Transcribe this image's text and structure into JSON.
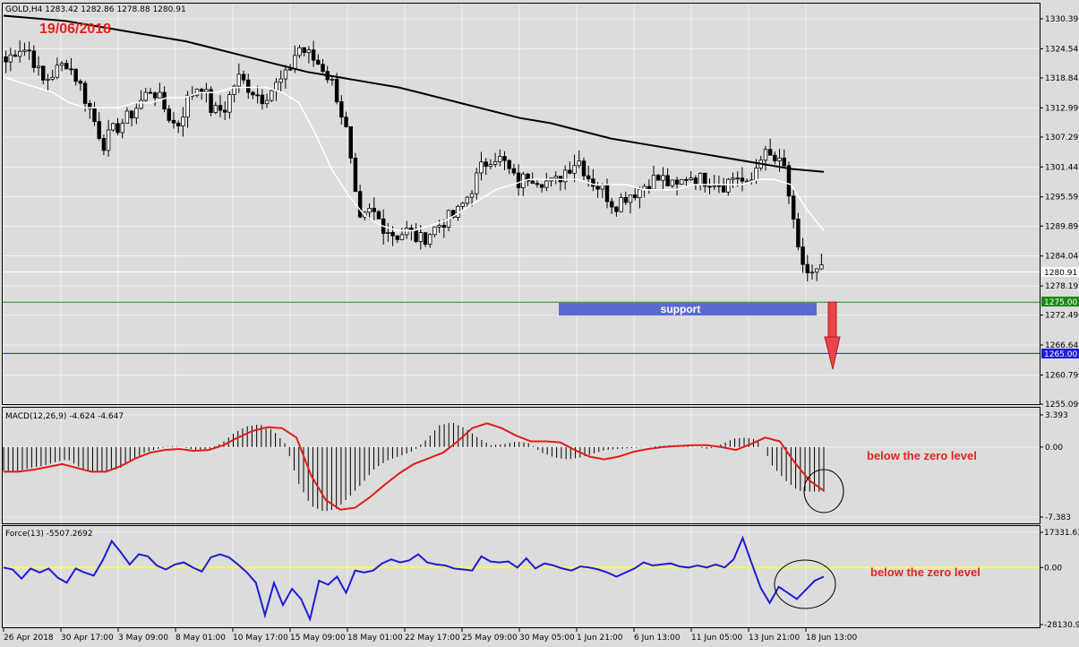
{
  "chart_data": [
    {
      "type": "candlestick",
      "symbol_header": "GOLD,H4  1283.42 1282.86 1278.88 1280.91",
      "annotation_date": "19/06/2018",
      "y_ticks": [
        "1330.39",
        "1324.54",
        "1318.84",
        "1312.99",
        "1307.29",
        "1301.44",
        "1295.59",
        "1289.89",
        "1284.04",
        "1278.19",
        "1272.49",
        "1266.64",
        "1260.79",
        "1255.09"
      ],
      "ylim": [
        1255.09,
        1330.39
      ],
      "current_price": 1280.91,
      "current_price_label": "1280.91",
      "level_support": 1275.0,
      "level_support_label": "1275.00",
      "level_target": 1265.0,
      "level_target_label": "1265.00",
      "support_label": "support",
      "close_path": [
        1322,
        1325,
        1324,
        1318,
        1320,
        1322,
        1318,
        1312,
        1306,
        1309,
        1311,
        1314,
        1317,
        1313,
        1309,
        1315,
        1318,
        1312,
        1313,
        1319,
        1317,
        1315,
        1317,
        1319,
        1325,
        1323,
        1321,
        1317,
        1308,
        1290,
        1293,
        1290,
        1288,
        1289,
        1287,
        1289,
        1291,
        1292,
        1296,
        1301,
        1304,
        1302,
        1298,
        1300,
        1299,
        1298,
        1301,
        1303,
        1299,
        1297,
        1294,
        1296,
        1297,
        1299,
        1299,
        1297,
        1300,
        1299,
        1299,
        1298,
        1300,
        1297,
        1304,
        1303,
        1301,
        1285,
        1280,
        1281
      ],
      "ma_fast": [
        1319,
        1318,
        1317,
        1316,
        1314,
        1313,
        1313,
        1313,
        1314,
        1314,
        1315,
        1315,
        1316,
        1316,
        1317,
        1317,
        1317,
        1316,
        1314,
        1308,
        1301,
        1296,
        1292,
        1290,
        1289,
        1289,
        1290,
        1291,
        1293,
        1295,
        1297,
        1298,
        1299,
        1299,
        1299,
        1299,
        1298,
        1298,
        1298,
        1297,
        1297,
        1297,
        1298,
        1298,
        1298,
        1298,
        1299,
        1299,
        1298,
        1293,
        1289
      ],
      "ma_slow": [
        1331,
        1330.5,
        1330,
        1329,
        1328,
        1327,
        1326,
        1324.5,
        1323,
        1321.5,
        1320,
        1319,
        1318,
        1317,
        1315.5,
        1314,
        1312.5,
        1311,
        1310,
        1308.5,
        1307,
        1306,
        1305,
        1304,
        1303,
        1302,
        1301,
        1300.5
      ]
    },
    {
      "type": "bar",
      "name": "MACD",
      "header": "MACD(12,26,9) -4.624 -4.647",
      "y_ticks": [
        "3.393",
        "0.00",
        "-7.383"
      ],
      "ylim": [
        -7.383,
        3.393
      ],
      "annotation": "below the zero level",
      "histogram": [
        -2.5,
        -2.6,
        -2.2,
        -2.0,
        -1.6,
        -1.3,
        -2.2,
        -2.6,
        -2.6,
        -2.3,
        -1.4,
        -0.6,
        -0.2,
        0.1,
        0.0,
        -0.3,
        -0.2,
        0.4,
        1.5,
        2.2,
        2.4,
        1.8,
        0.3,
        -3.8,
        -6.2,
        -6.8,
        -6.5,
        -5.2,
        -3.8,
        -2.2,
        -1.4,
        -0.9,
        -0.4,
        0.8,
        2.3,
        2.6,
        2.0,
        1.0,
        0.2,
        0.3,
        0.6,
        0.4,
        -0.6,
        -1.1,
        -1.3,
        -1.1,
        -0.7,
        -0.3,
        -0.2,
        -0.1,
        0.0,
        0.1,
        0.2,
        0.2,
        0.0,
        -0.2,
        0.3,
        0.9,
        1.0,
        0.7,
        -2.0,
        -3.5,
        -4.6,
        -4.7,
        -4.7
      ],
      "signal": [
        -2.6,
        -2.6,
        -2.4,
        -2.1,
        -1.8,
        -2.2,
        -2.6,
        -2.6,
        -2.0,
        -1.2,
        -0.6,
        -0.3,
        -0.2,
        -0.4,
        -0.3,
        0.2,
        1.0,
        1.7,
        2.1,
        2.0,
        1.0,
        -3.0,
        -5.6,
        -6.6,
        -6.4,
        -5.3,
        -4.0,
        -2.8,
        -1.8,
        -1.2,
        -0.6,
        0.6,
        2.0,
        2.5,
        2.0,
        1.2,
        0.6,
        0.6,
        0.5,
        -0.3,
        -1.0,
        -1.3,
        -1.0,
        -0.5,
        -0.2,
        0.0,
        0.1,
        0.2,
        0.2,
        0.0,
        -0.3,
        0.3,
        1.0,
        0.6,
        -1.6,
        -3.5,
        -4.6
      ]
    },
    {
      "type": "line",
      "name": "Force",
      "header": "Force(13) -5507.2692",
      "y_ticks": [
        "17331.63",
        "0.00",
        "-28130.97"
      ],
      "ylim": [
        -28130.97,
        17331.63
      ],
      "annotation": "below the zero level",
      "values": [
        0,
        -1000,
        -5500,
        -500,
        -2500,
        -500,
        -5000,
        -7500,
        -500,
        -2500,
        -4000,
        3500,
        13000,
        7500,
        1500,
        6500,
        5500,
        1000,
        -1000,
        1500,
        2500,
        0,
        -2000,
        5000,
        6500,
        5000,
        1500,
        -2500,
        -7500,
        -23500,
        -7500,
        -18500,
        -10500,
        -15500,
        -25500,
        -6500,
        -8500,
        -4500,
        -12500,
        -1500,
        -2500,
        -1500,
        2000,
        4000,
        2500,
        3500,
        6500,
        2500,
        1500,
        1000,
        -500,
        -1000,
        -1500,
        5500,
        3000,
        2500,
        3000,
        0,
        4500,
        -500,
        2000,
        1000,
        -500,
        -1500,
        500,
        0,
        -1000,
        -2500,
        -4500,
        -2500,
        -500,
        2500,
        1000,
        1500,
        2000,
        500,
        0,
        1000,
        0,
        1500,
        0,
        4000,
        14500,
        2000,
        -10000,
        -17500,
        -9500,
        -12500,
        -15500,
        -11000,
        -6500,
        -4500
      ]
    }
  ],
  "x_ticks": [
    "26 Apr 2018",
    "30 Apr 17:00",
    "3 May 09:00",
    "8 May 01:00",
    "10 May 17:00",
    "15 May 09:00",
    "18 May 01:00",
    "22 May 17:00",
    "25 May 09:00",
    "30 May 05:00",
    "1 Jun 21:00",
    "6 Jun 13:00",
    "11 Jun 05:00",
    "13 Jun 21:00",
    "18 Jun 13:00"
  ],
  "colors": {
    "background": "#dcdcdc",
    "grid": "#ffffff",
    "candle_up": "#ffffff",
    "candle_down": "#000000",
    "ma_fast": "#ffffff",
    "ma_slow": "#000000",
    "support_line": "#1a8a1a",
    "target_line": "#1c1cd6",
    "support_box": "#5a6ad2",
    "arrow": "#e8424a",
    "macd_signal": "#e21a1a",
    "force_line": "#1c1cd6",
    "force_zero": "#ffff33",
    "annotation": "#e8231d"
  }
}
